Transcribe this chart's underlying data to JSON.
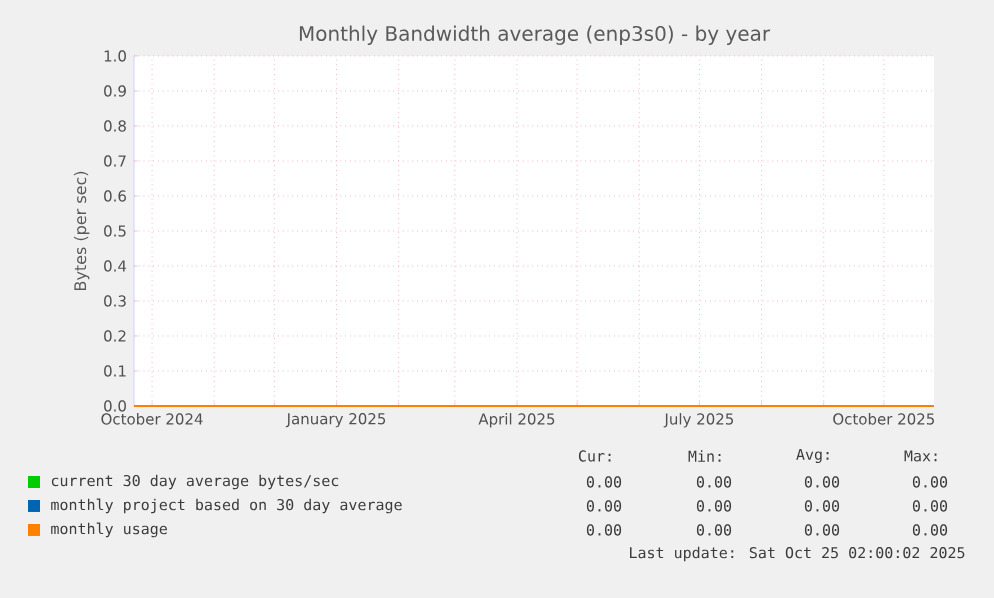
{
  "chart_data": {
    "type": "line",
    "title": "Monthly Bandwidth average (enp3s0) - by year",
    "ylabel": "Bytes (per sec)",
    "xlim": [
      "2024-09-22",
      "2025-10-26"
    ],
    "xticks": [
      {
        "value": "2024-10-01",
        "label": "October 2024"
      },
      {
        "value": "2024-11-01",
        "label": null
      },
      {
        "value": "2024-12-01",
        "label": null
      },
      {
        "value": "2025-01-01",
        "label": "January 2025"
      },
      {
        "value": "2025-02-01",
        "label": null
      },
      {
        "value": "2025-03-01",
        "label": null
      },
      {
        "value": "2025-04-01",
        "label": "April 2025"
      },
      {
        "value": "2025-05-01",
        "label": null
      },
      {
        "value": "2025-06-01",
        "label": null
      },
      {
        "value": "2025-07-01",
        "label": "July 2025"
      },
      {
        "value": "2025-08-01",
        "label": null
      },
      {
        "value": "2025-09-01",
        "label": null
      },
      {
        "value": "2025-10-01",
        "label": "October 2025"
      }
    ],
    "ylim": [
      0,
      1
    ],
    "yticks": [
      {
        "value": 0,
        "label": "0.0"
      },
      {
        "value": 0.1,
        "label": "0.1"
      },
      {
        "value": 0.2,
        "label": "0.2"
      },
      {
        "value": 0.3,
        "label": "0.3"
      },
      {
        "value": 0.4,
        "label": "0.4"
      },
      {
        "value": 0.5,
        "label": "0.5"
      },
      {
        "value": 0.6,
        "label": "0.6"
      },
      {
        "value": 0.7,
        "label": "0.7"
      },
      {
        "value": 0.8,
        "label": "0.8"
      },
      {
        "value": 0.9,
        "label": "0.9"
      },
      {
        "value": 1,
        "label": "1.0"
      }
    ],
    "grid": true,
    "legend": "bottom",
    "series": [
      {
        "name": "current 30 day average bytes/sec",
        "color": "#00cc00"
      },
      {
        "name": "monthly project based on 30 day average",
        "color": "#0066b3"
      },
      {
        "name": "monthly usage",
        "color": "#ff8000",
        "x": [
          "2024-09-22",
          "2025-10-26"
        ],
        "values": [
          0,
          0
        ]
      }
    ],
    "annotations": [
      "Cur:",
      "Min:",
      "Avg:",
      "Max:",
      "0.00",
      "0.00",
      "0.00",
      "0.00",
      "0.00",
      "0.00",
      "0.00",
      "0.00",
      "0.00",
      "0.00",
      "0.00",
      "0.00",
      "Last update: Sat Oct 25 02:00:02 2025"
    ]
  }
}
